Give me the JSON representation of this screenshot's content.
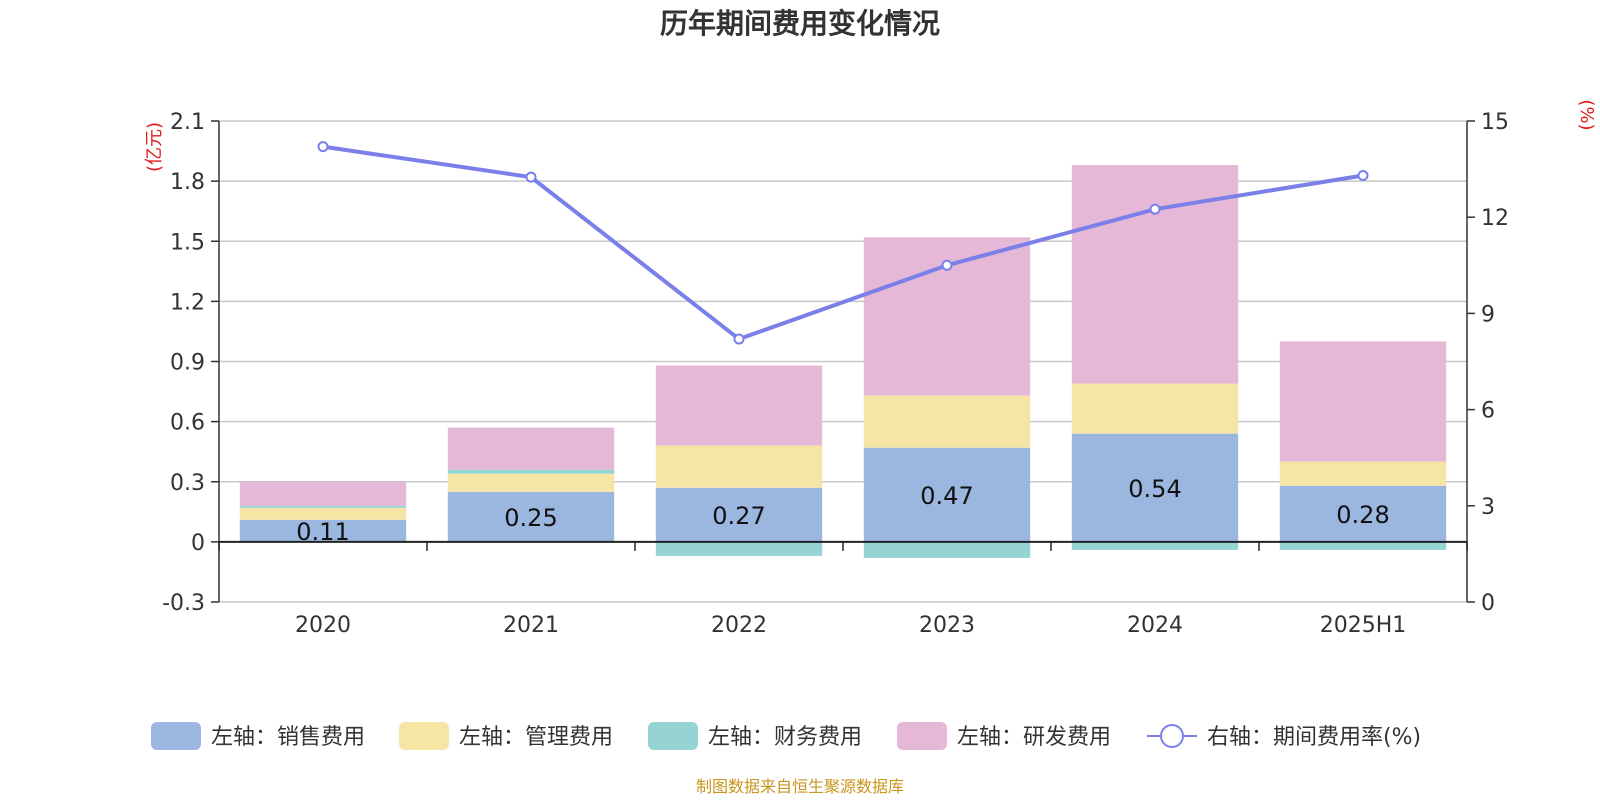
{
  "title": "历年期间费用变化情况",
  "source_note": "制图数据来自恒生聚源数据库",
  "left_unit": "(亿元)",
  "right_unit": "(%)",
  "chart_data": {
    "type": "bar",
    "stacked": true,
    "categories": [
      "2020",
      "2021",
      "2022",
      "2023",
      "2024",
      "2025H1"
    ],
    "series": [
      {
        "name": "左轴：销售费用",
        "axis": "left",
        "color": "#9bb7e0",
        "values": [
          0.11,
          0.25,
          0.27,
          0.47,
          0.54,
          0.28
        ],
        "labels": [
          "0.11",
          "0.25",
          "0.27",
          "0.47",
          "0.54",
          "0.28"
        ]
      },
      {
        "name": "左轴：管理费用",
        "axis": "left",
        "color": "#f6e6a6",
        "values": [
          0.06,
          0.09,
          0.21,
          0.26,
          0.25,
          0.12
        ]
      },
      {
        "name": "左轴：财务费用",
        "axis": "left",
        "color": "#96d4d4",
        "values": [
          0.01,
          0.02,
          -0.07,
          -0.08,
          -0.04,
          -0.04
        ]
      },
      {
        "name": "左轴：研发费用",
        "axis": "left",
        "color": "#e6b8d8",
        "values": [
          0.12,
          0.21,
          0.4,
          0.79,
          1.09,
          0.6
        ]
      },
      {
        "name": "右轴：期间费用率(%)",
        "axis": "right",
        "type": "line",
        "color": "#7b7fe8",
        "values": [
          14.2,
          13.25,
          8.2,
          10.5,
          12.25,
          13.3
        ]
      }
    ],
    "y_left": {
      "min": -0.3,
      "max": 2.1,
      "ticks": [
        "-0.3",
        "0",
        "0.3",
        "0.6",
        "0.9",
        "1.2",
        "1.5",
        "1.8",
        "2.1"
      ]
    },
    "y_right": {
      "min": 0,
      "max": 15,
      "ticks": [
        "0",
        "3",
        "6",
        "9",
        "12",
        "15"
      ]
    },
    "grid": true,
    "legend_position": "bottom"
  }
}
